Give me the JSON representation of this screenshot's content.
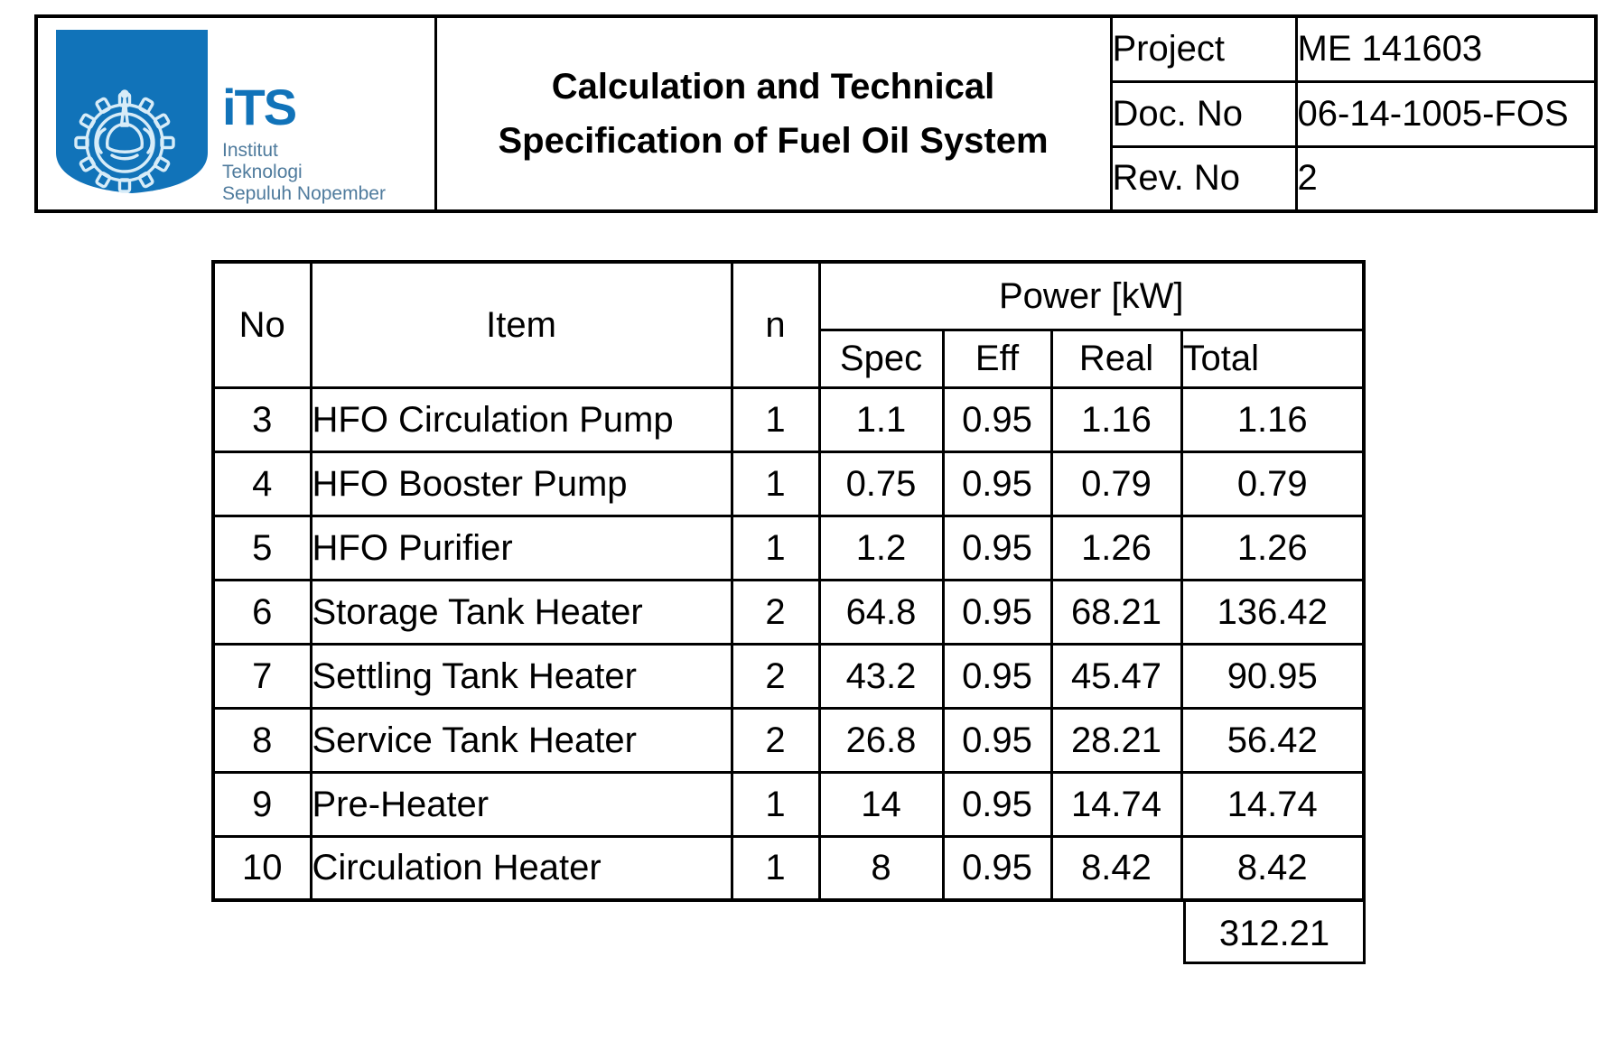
{
  "colors": {
    "logo_blue": "#1173b9",
    "emblem_stroke": "#d7ecf8",
    "logo_subtext": "#4f7b9d",
    "border_black": "#000000"
  },
  "header": {
    "logo": {
      "acronym": "iTS",
      "institution_lines": [
        "Institut",
        "Teknologi",
        "Sepuluh Nopember"
      ]
    },
    "title_line1": "Calculation and Technical",
    "title_line2": "Specification of Fuel Oil System",
    "meta": [
      {
        "label": "Project",
        "value": "ME 141603"
      },
      {
        "label": "Doc. No",
        "value": "06-14-1005-FOS"
      },
      {
        "label": "Rev. No",
        "value": "2"
      }
    ]
  },
  "table": {
    "headers": {
      "no": "No",
      "item": "Item",
      "n": "n",
      "power_group": "Power [kW]",
      "sub": [
        "Spec",
        "Eff",
        "Real",
        "Total"
      ]
    },
    "rows": [
      {
        "no": "3",
        "item": "HFO Circulation Pump",
        "n": "1",
        "spec": "1.1",
        "eff": "0.95",
        "real": "1.16",
        "total": "1.16"
      },
      {
        "no": "4",
        "item": "HFO Booster Pump",
        "n": "1",
        "spec": "0.75",
        "eff": "0.95",
        "real": "0.79",
        "total": "0.79"
      },
      {
        "no": "5",
        "item": "HFO Purifier",
        "n": "1",
        "spec": "1.2",
        "eff": "0.95",
        "real": "1.26",
        "total": "1.26"
      },
      {
        "no": "6",
        "item": "Storage Tank Heater",
        "n": "2",
        "spec": "64.8",
        "eff": "0.95",
        "real": "68.21",
        "total": "136.42"
      },
      {
        "no": "7",
        "item": "Settling Tank Heater",
        "n": "2",
        "spec": "43.2",
        "eff": "0.95",
        "real": "45.47",
        "total": "90.95"
      },
      {
        "no": "8",
        "item": "Service Tank Heater",
        "n": "2",
        "spec": "26.8",
        "eff": "0.95",
        "real": "28.21",
        "total": "56.42"
      },
      {
        "no": "9",
        "item": "Pre-Heater",
        "n": "1",
        "spec": "14",
        "eff": "0.95",
        "real": "14.74",
        "total": "14.74"
      },
      {
        "no": "10",
        "item": "Circulation Heater",
        "n": "1",
        "spec": "8",
        "eff": "0.95",
        "real": "8.42",
        "total": "8.42"
      }
    ],
    "grand_total": "312.21"
  }
}
